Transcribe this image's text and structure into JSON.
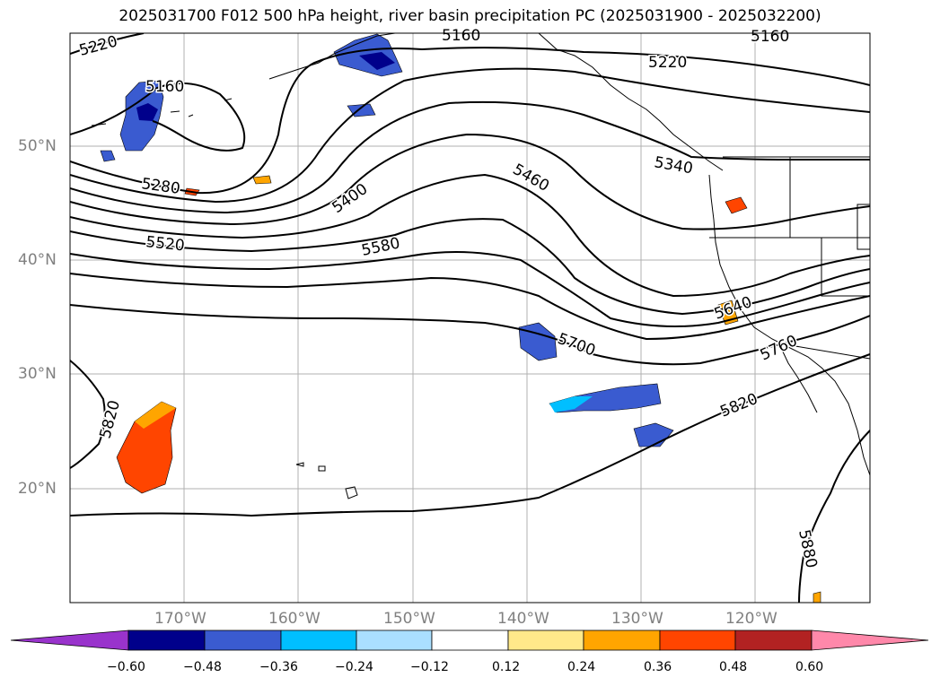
{
  "title": "2025031700 F012 500 hPa height, river basin precipitation PC (2025031900 - 2025032200)",
  "lat_labels": [
    "50°N",
    "40°N",
    "30°N",
    "20°N"
  ],
  "lon_labels": [
    "170°W",
    "160°W",
    "150°W",
    "140°W",
    "130°W",
    "120°W"
  ],
  "contour_labels": [
    "5220",
    "5160",
    "5160",
    "5160",
    "5220",
    "5280",
    "5400",
    "5460",
    "5340",
    "5520",
    "5580",
    "5640",
    "5700",
    "5760",
    "5820",
    "5820",
    "5880"
  ],
  "colorbar": {
    "ticks": [
      "−0.60",
      "−0.48",
      "−0.36",
      "−0.24",
      "−0.12",
      "0.12",
      "0.24",
      "0.36",
      "0.48",
      "0.60"
    ],
    "colors": [
      "#9933cc",
      "#00008b",
      "#3a5bd0",
      "#00bfff",
      "#aadfff",
      "#ffffff",
      "#ffe98a",
      "#ffa500",
      "#ff4500",
      "#b22222",
      "#ff88aa"
    ]
  },
  "colors": {
    "contour": "#000000",
    "grid": "#b0b0b0",
    "coast": "#000000"
  }
}
